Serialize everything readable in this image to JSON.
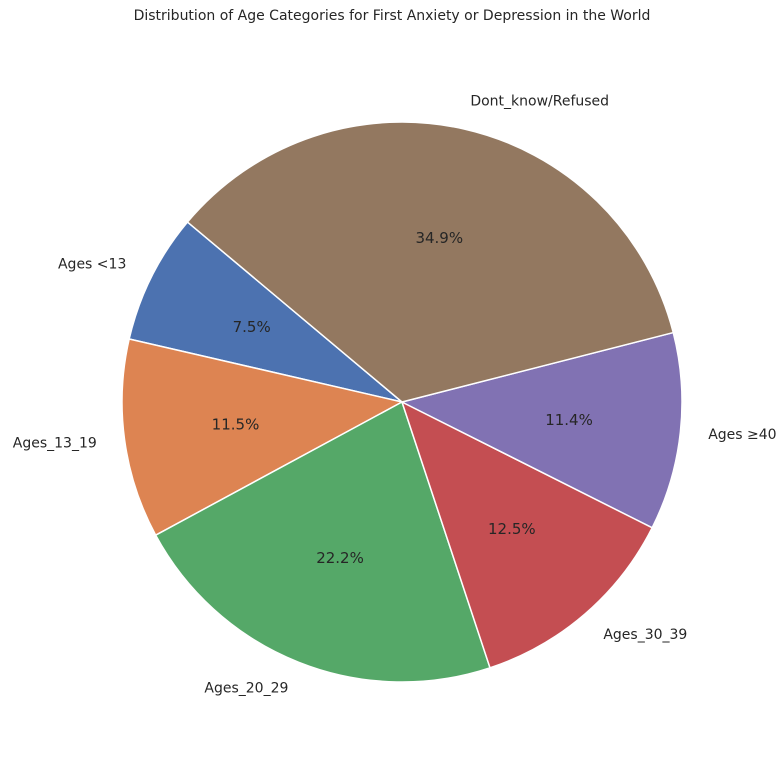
{
  "chart_data": {
    "type": "pie",
    "title": "Distribution of Age Categories for First Anxiety or Depression in the World",
    "categories": [
      "Ages <13",
      "Ages_13_19",
      "Ages_20_29",
      "Ages_30_39",
      "Ages ≥40",
      "Dont_know/Refused"
    ],
    "values": [
      7.5,
      11.5,
      22.2,
      12.5,
      11.4,
      34.9
    ],
    "value_labels": [
      "7.5%",
      "11.5%",
      "22.2%",
      "12.5%",
      "11.4%",
      "34.9%"
    ],
    "colors": [
      "#4c72b0",
      "#dd8452",
      "#55a868",
      "#c44e52",
      "#8172b3",
      "#937860"
    ],
    "start_angle_deg": 140,
    "direction": "counterclockwise",
    "slice_edge_color": "#ffffff"
  }
}
